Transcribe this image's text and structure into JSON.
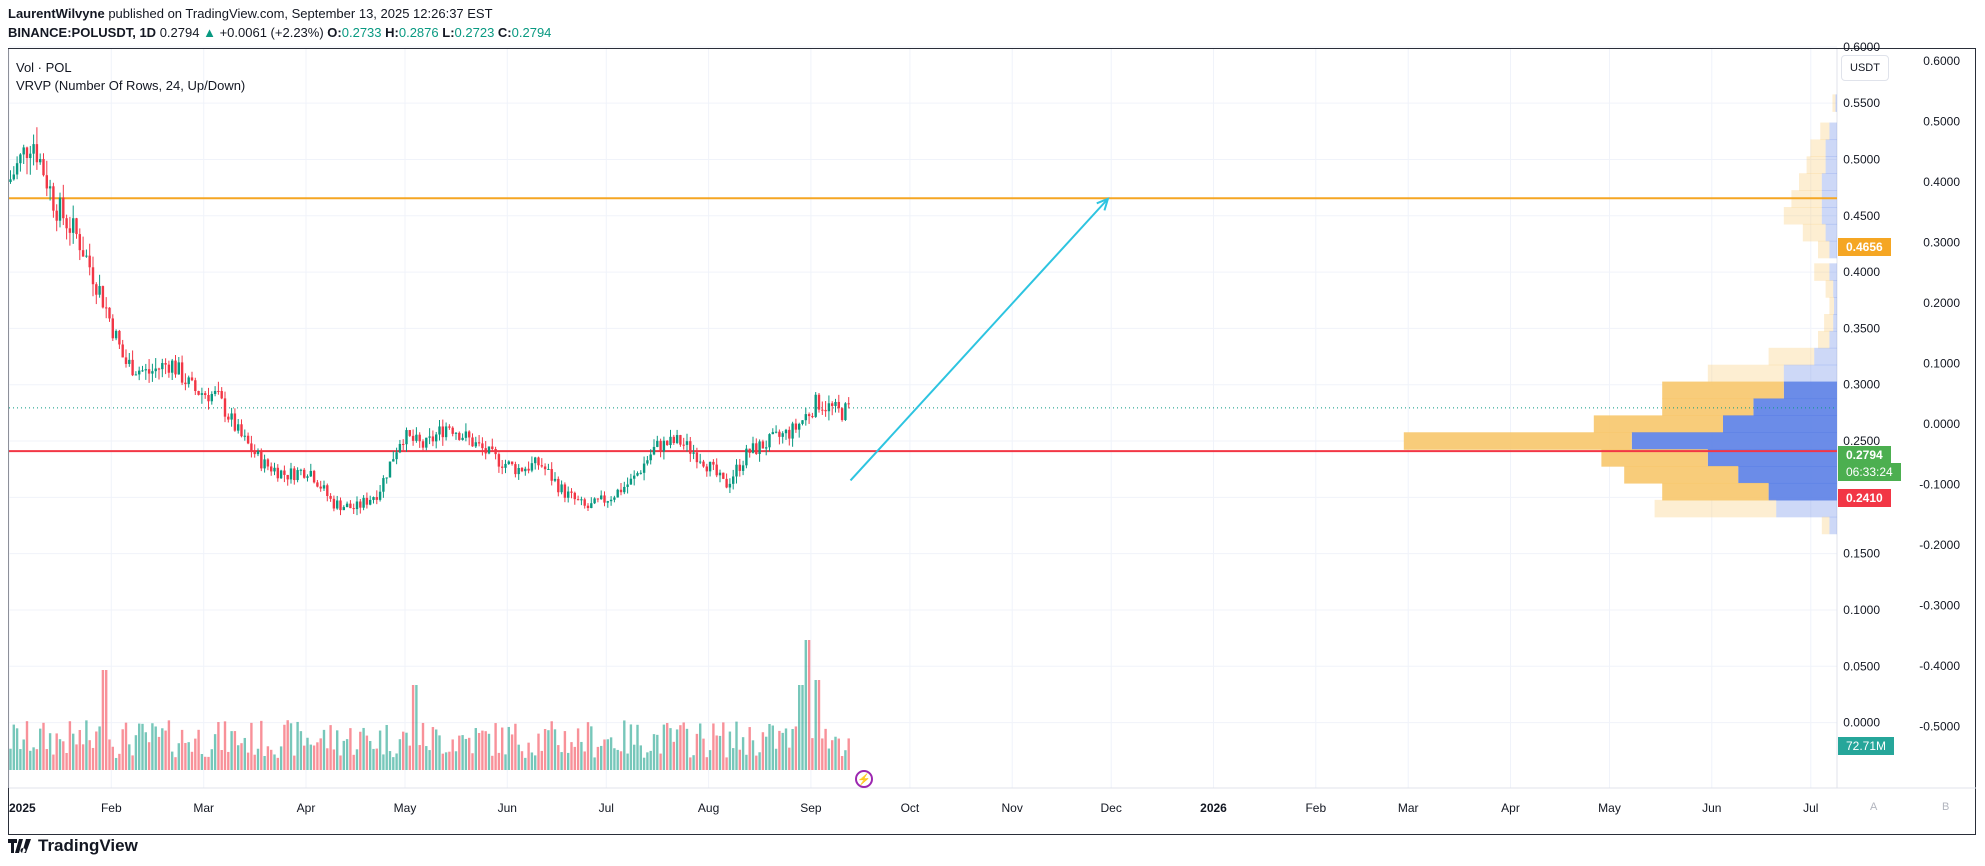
{
  "header": {
    "author": "LaurentWilvyne",
    "published_text": "published on TradingView.com, September 13, 2025 12:26:37 EST",
    "symbol": "BINANCE:POLUSDT, 1D",
    "last": "0.2794",
    "change": "+0.0061 (+2.23%)",
    "ohlc": {
      "o_label": "O:",
      "o": "0.2733",
      "h_label": "H:",
      "h": "0.2876",
      "l_label": "L:",
      "l": "0.2723",
      "c_label": "C:",
      "c": "0.2794"
    }
  },
  "legend": {
    "vol": "Vol · POL",
    "vrvp": "VRVP (Number Of Rows, 24, Up/Down)"
  },
  "currency_button": "USDT",
  "colors": {
    "up": "#089981",
    "down": "#f23645",
    "resistance": "#f5a623",
    "support": "#f23645",
    "arrow": "#2dc4e0",
    "vp_up": "#5b7fe6",
    "vp_down": "#f7c66b",
    "last_tag": "#4caf50"
  },
  "tags": {
    "resistance": "0.4656",
    "last_price": "0.2794",
    "countdown": "06:33:24",
    "support": "0.2410",
    "volume": "72.71M"
  },
  "footer": {
    "logo": "TradingView",
    "a": "A",
    "b": "B"
  },
  "chart_data": {
    "type": "candlestick",
    "symbol": "BINANCE:POLUSDT",
    "interval": "1D",
    "price_axis": {
      "ticks": [
        0.6,
        0.55,
        0.5,
        0.45,
        0.4,
        0.35,
        0.3,
        0.25,
        0.2,
        0.15,
        0.1,
        0.05,
        0.0
      ],
      "labels": [
        "0.6000",
        "0.5500",
        "0.5000",
        "0.4500",
        "0.4000",
        "0.3500",
        "0.3000",
        "0.2500",
        "0.2000",
        "0.1500",
        "0.1000",
        "0.0500",
        "0.0000"
      ]
    },
    "secondary_axis": {
      "labels": [
        "0.6000",
        "0.5000",
        "0.4000",
        "0.3000",
        "0.2000",
        "0.1000",
        "0.0000",
        "-0.1000",
        "-0.2000",
        "-0.3000",
        "-0.4000",
        "-0.5000"
      ]
    },
    "x_axis": {
      "labels": [
        "2025",
        "Feb",
        "Mar",
        "Apr",
        "May",
        "Jun",
        "Jul",
        "Aug",
        "Sep",
        "Oct",
        "Nov",
        "Dec",
        "2026",
        "Feb",
        "Mar",
        "Apr",
        "May",
        "Jun",
        "Jul"
      ]
    },
    "horizontal_lines": [
      {
        "price": 0.4656,
        "color": "#f5a623"
      },
      {
        "price": 0.241,
        "color": "#f23645"
      }
    ],
    "arrow": {
      "from_date": "2025-09-13",
      "from_price": 0.215,
      "to_date": "2025-11-30",
      "to_price": 0.465
    },
    "price_path": [
      [
        "2025-01-01",
        0.48
      ],
      [
        "2025-01-08",
        0.52
      ],
      [
        "2025-01-15",
        0.46
      ],
      [
        "2025-01-22",
        0.43
      ],
      [
        "2025-01-29",
        0.38
      ],
      [
        "2025-02-05",
        0.32
      ],
      [
        "2025-02-12",
        0.31
      ],
      [
        "2025-02-19",
        0.32
      ],
      [
        "2025-02-26",
        0.295
      ],
      [
        "2025-03-05",
        0.29
      ],
      [
        "2025-03-12",
        0.255
      ],
      [
        "2025-03-19",
        0.23
      ],
      [
        "2025-03-26",
        0.22
      ],
      [
        "2025-04-02",
        0.225
      ],
      [
        "2025-04-09",
        0.195
      ],
      [
        "2025-04-16",
        0.19
      ],
      [
        "2025-04-23",
        0.205
      ],
      [
        "2025-04-30",
        0.255
      ],
      [
        "2025-05-07",
        0.245
      ],
      [
        "2025-05-14",
        0.265
      ],
      [
        "2025-05-21",
        0.25
      ],
      [
        "2025-05-28",
        0.235
      ],
      [
        "2025-06-04",
        0.225
      ],
      [
        "2025-06-11",
        0.23
      ],
      [
        "2025-06-18",
        0.205
      ],
      [
        "2025-06-25",
        0.19
      ],
      [
        "2025-07-02",
        0.2
      ],
      [
        "2025-07-09",
        0.215
      ],
      [
        "2025-07-16",
        0.245
      ],
      [
        "2025-07-23",
        0.25
      ],
      [
        "2025-07-30",
        0.235
      ],
      [
        "2025-08-06",
        0.21
      ],
      [
        "2025-08-13",
        0.24
      ],
      [
        "2025-08-20",
        0.25
      ],
      [
        "2025-08-27",
        0.26
      ],
      [
        "2025-09-03",
        0.285
      ],
      [
        "2025-09-10",
        0.275
      ],
      [
        "2025-09-13",
        0.2794
      ]
    ],
    "volume": {
      "last": "72.71M",
      "spikes": [
        [
          "2025-01-30",
          1.0
        ],
        [
          "2025-05-04",
          0.85
        ],
        [
          "2025-08-31",
          1.3
        ],
        [
          "2025-09-03",
          0.9
        ],
        [
          "2025-08-29",
          0.85
        ]
      ]
    },
    "volume_profile": {
      "rows": 24,
      "mode": "Up/Down"
    }
  }
}
